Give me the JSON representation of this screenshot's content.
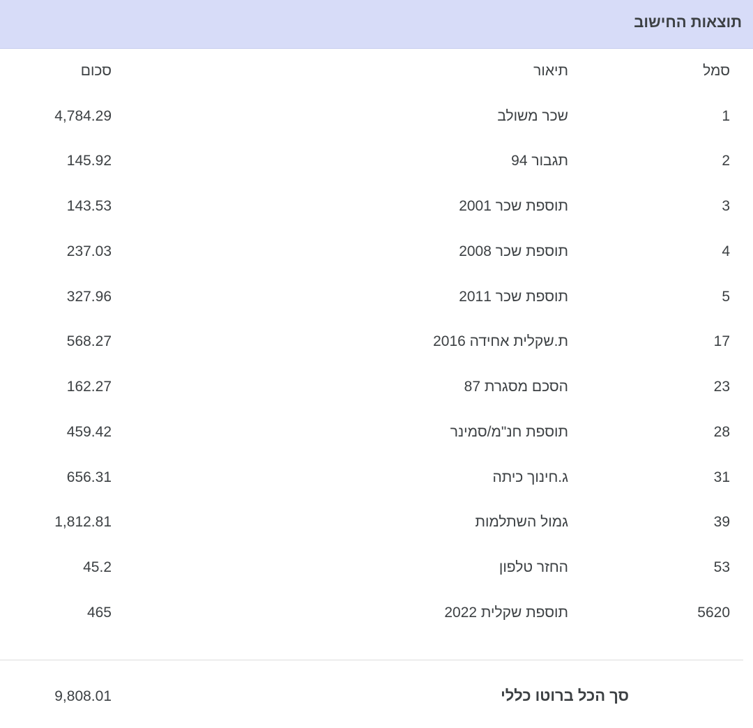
{
  "header": {
    "title": "תוצאות החישוב"
  },
  "table": {
    "columns": {
      "code": "סמל",
      "description": "תיאור",
      "amount": "סכום"
    },
    "rows": [
      {
        "code": "1",
        "description": "שכר משולב",
        "amount": "4,784.29"
      },
      {
        "code": "2",
        "description": "תגבור 94",
        "amount": "145.92"
      },
      {
        "code": "3",
        "description": "תוספת שכר 2001",
        "amount": "143.53"
      },
      {
        "code": "4",
        "description": "תוספת שכר 2008",
        "amount": "237.03"
      },
      {
        "code": "5",
        "description": "תוספת שכר 2011",
        "amount": "327.96"
      },
      {
        "code": "17",
        "description": "ת.שקלית אחידה 2016",
        "amount": "568.27"
      },
      {
        "code": "23",
        "description": "הסכם מסגרת 87",
        "amount": "162.27"
      },
      {
        "code": "28",
        "description": "תוספת חנ\"מ/סמינר",
        "amount": "459.42"
      },
      {
        "code": "31",
        "description": "ג.חינוך כיתה",
        "amount": "656.31"
      },
      {
        "code": "39",
        "description": "גמול השתלמות",
        "amount": "1,812.81"
      },
      {
        "code": "53",
        "description": "החזר טלפון",
        "amount": "45.2"
      },
      {
        "code": "5620",
        "description": "תוספת שקלית 2022",
        "amount": "465"
      }
    ]
  },
  "total": {
    "label": "סך הכל ברוטו כללי",
    "value": "9,808.01"
  }
}
